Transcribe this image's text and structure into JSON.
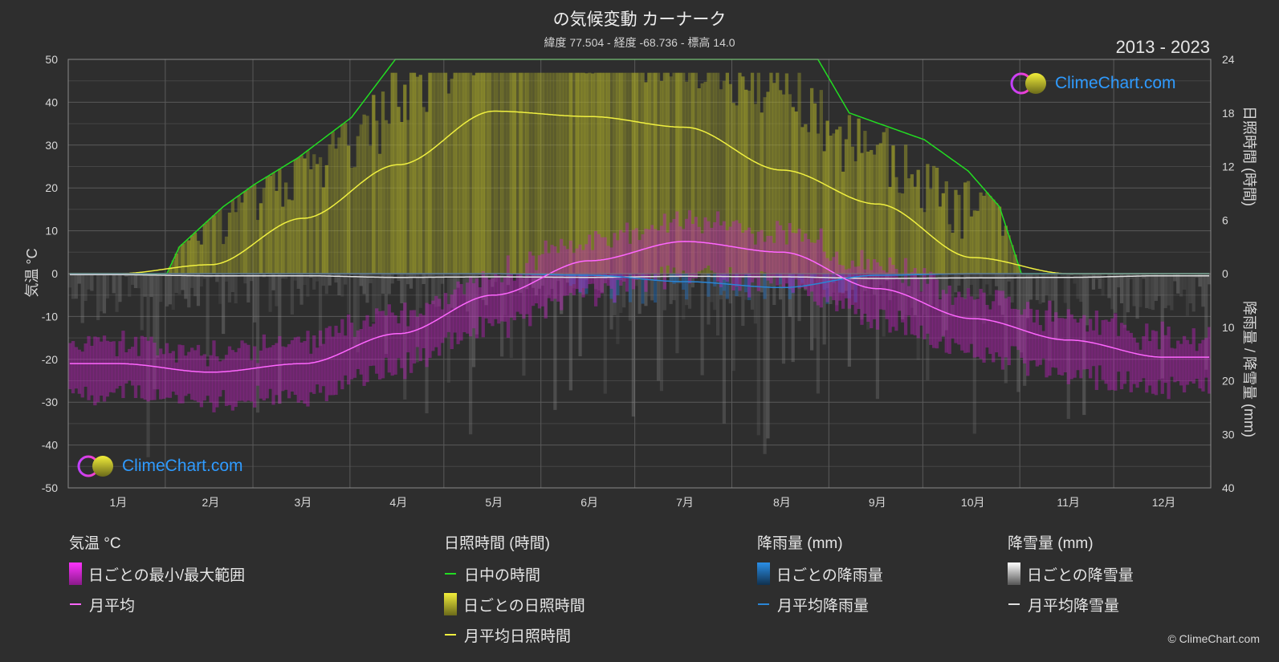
{
  "title": "の気候変動 カーナーク",
  "subtitle": "緯度 77.504 - 経度 -68.736 - 標高 14.0",
  "year_range": "2013 - 2023",
  "logo_text": "ClimeChart.com",
  "copyright": "© ClimeChart.com",
  "colors": {
    "background": "#2e2e2e",
    "daylight": "#22dd22",
    "sunshine_bar": "#a6a62a",
    "sunshine_avg": "#f0f040",
    "temp_range": "#c020c0",
    "temp_avg": "#ff66ff",
    "rain_bar": "#1e6fbf",
    "rain_avg": "#2a86d6",
    "snow_bar": "#8c8c8c",
    "snow_avg": "#e0e0e0",
    "logo": "#2f9bff"
  },
  "chart_data": {
    "type": "line",
    "months": [
      "1月",
      "2月",
      "3月",
      "4月",
      "5月",
      "6月",
      "7月",
      "8月",
      "9月",
      "10月",
      "11月",
      "12月"
    ],
    "axes": {
      "left": {
        "title": "気温 °C",
        "range": [
          -50,
          50
        ],
        "ticks": [
          "50",
          "40",
          "30",
          "20",
          "10",
          "0",
          "-10",
          "-20",
          "-30",
          "-40",
          "-50"
        ]
      },
      "right_top": {
        "title": "日照時間 (時間)",
        "range": [
          0,
          24
        ],
        "ticks": [
          "24",
          "18",
          "12",
          "6",
          "0"
        ]
      },
      "right_bottom": {
        "title": "降雨量 / 降雪量 (mm)",
        "range": [
          0,
          40
        ],
        "ticks": [
          "10",
          "20",
          "30",
          "40"
        ]
      }
    },
    "grid": true,
    "series": {
      "daylight_hours": {
        "name": "日中の時間",
        "x": [
          1,
          32,
          36,
          50,
          60,
          74,
          91,
          105,
          110,
          235,
          240,
          250,
          274,
          288,
          298,
          305,
          365
        ],
        "values": [
          0,
          0,
          3,
          7.5,
          10,
          13,
          17.5,
          24,
          24,
          24,
          24,
          18,
          15,
          11.5,
          7.5,
          0,
          0
        ]
      },
      "sunshine_monthly_avg": {
        "name": "月平均日照時間",
        "values": [
          0.0,
          1.0,
          6.2,
          12.2,
          18.2,
          17.6,
          16.4,
          11.6,
          7.8,
          1.8,
          0.0,
          0.0
        ]
      },
      "temp_monthly_avg": {
        "name": "月平均",
        "values": [
          -21,
          -23,
          -21,
          -14,
          -5,
          3,
          7.5,
          5,
          -3.5,
          -10.5,
          -15.5,
          -19.5
        ]
      },
      "rain_monthly_avg": {
        "name": "月平均降雨量",
        "values": [
          0,
          0,
          0,
          0,
          0,
          0.3,
          1.5,
          2.6,
          0.3,
          0,
          0,
          0
        ]
      },
      "snow_monthly_avg": {
        "name": "月平均降雪量",
        "values": [
          0.2,
          0.4,
          0.4,
          0.7,
          0.6,
          0.7,
          0.5,
          0.6,
          0.9,
          0.8,
          0.7,
          0.4
        ]
      }
    }
  },
  "legend": {
    "temp": {
      "header": "気温 °C",
      "range_label": "日ごとの最小/最大範囲",
      "avg_label": "月平均"
    },
    "sun": {
      "header": "日照時間 (時間)",
      "daylight_label": "日中の時間",
      "daily_label": "日ごとの日照時間",
      "avg_label": "月平均日照時間"
    },
    "rain": {
      "header": "降雨量 (mm)",
      "daily_label": "日ごとの降雨量",
      "avg_label": "月平均降雨量"
    },
    "snow": {
      "header": "降雪量 (mm)",
      "daily_label": "日ごとの降雪量",
      "avg_label": "月平均降雪量"
    }
  }
}
